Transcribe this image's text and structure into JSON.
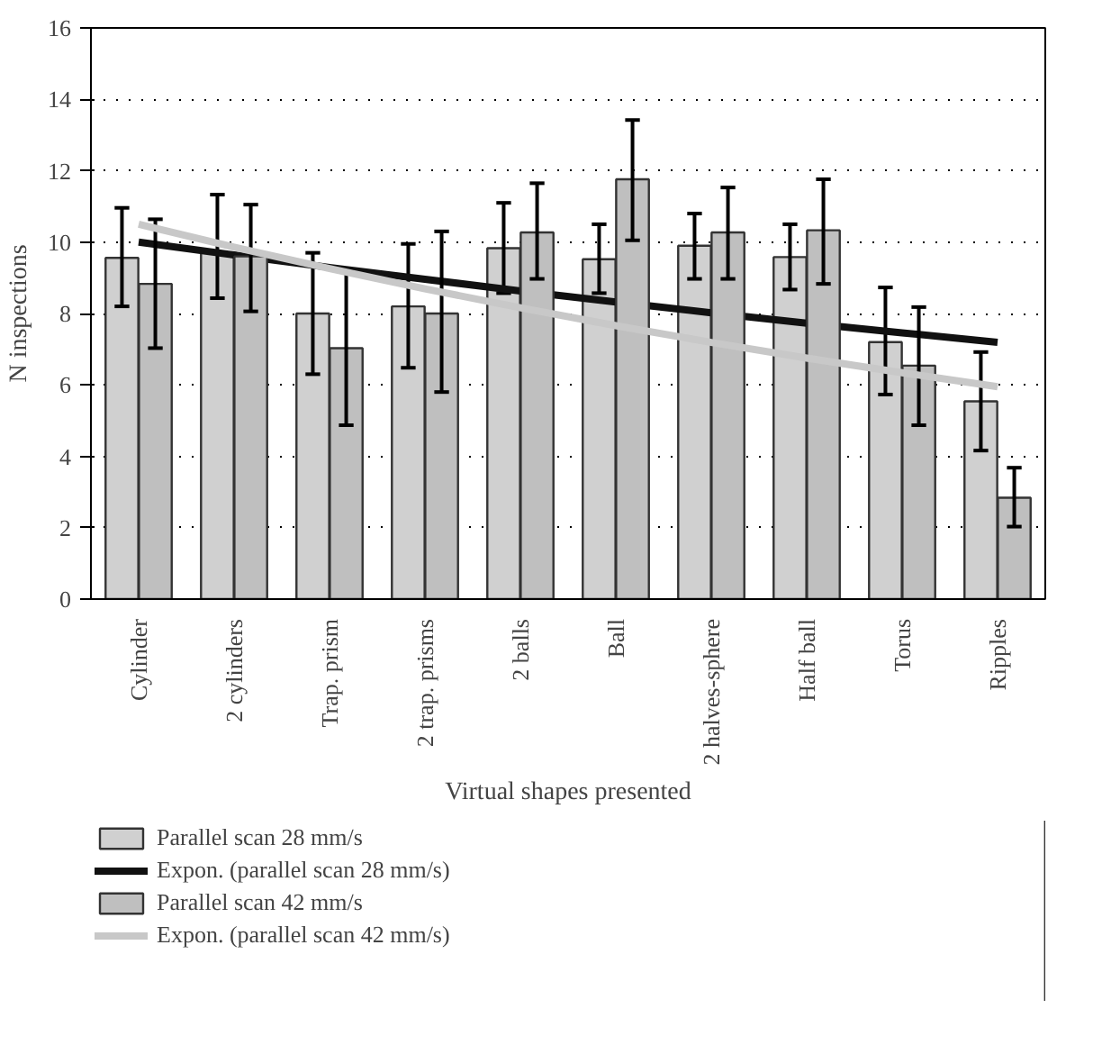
{
  "chart_data": {
    "type": "bar",
    "xlabel": "Virtual shapes presented",
    "ylabel": "N inspections",
    "categories": [
      "Cylinder",
      "2 cylinders",
      "Trap. prism",
      "2 trap. prisms",
      "2 balls",
      "Ball",
      "2 halves-sphere",
      "Half ball",
      "Torus",
      "Ripples"
    ],
    "series": [
      {
        "name": "Parallel scan 28 mm/s",
        "color": "#d0d0d0",
        "values": [
          9.56,
          9.7,
          8.0,
          8.2,
          9.83,
          9.52,
          9.9,
          9.58,
          7.2,
          5.54
        ],
        "errors": [
          [
            8.2,
            10.96
          ],
          [
            8.43,
            11.33
          ],
          [
            6.3,
            9.7
          ],
          [
            6.48,
            9.95
          ],
          [
            8.57,
            11.1
          ],
          [
            8.57,
            10.5
          ],
          [
            8.97,
            10.8
          ],
          [
            8.67,
            10.5
          ],
          [
            5.73,
            8.73
          ],
          [
            4.16,
            6.92
          ]
        ]
      },
      {
        "name": "Expon. (parallel scan 28 mm/s)",
        "type": "line",
        "color": "#111111",
        "values": [
          10.0,
          9.64,
          9.29,
          8.96,
          8.63,
          8.32,
          8.02,
          7.73,
          7.46,
          7.19
        ]
      },
      {
        "name": "Parallel scan 42 mm/s",
        "color": "#bfbfbf",
        "values": [
          8.83,
          9.6,
          7.03,
          8.0,
          10.27,
          11.76,
          10.27,
          10.33,
          6.54,
          2.84
        ],
        "errors": [
          [
            7.03,
            10.64
          ],
          [
            8.06,
            11.05
          ],
          [
            4.87,
            9.2
          ],
          [
            5.8,
            10.3
          ],
          [
            8.97,
            11.65
          ],
          [
            10.05,
            13.42
          ],
          [
            8.97,
            11.53
          ],
          [
            8.83,
            11.76
          ],
          [
            4.87,
            8.18
          ],
          [
            2.03,
            3.68
          ]
        ]
      },
      {
        "name": "Expon. (parallel scan 42 mm/s)",
        "type": "line",
        "color": "#c8c8c8",
        "values": [
          10.5,
          9.86,
          9.26,
          8.69,
          8.16,
          7.66,
          7.19,
          6.75,
          6.34,
          5.95
        ]
      }
    ],
    "ylim": [
      0,
      16
    ],
    "yticks": [
      0,
      2,
      4,
      6,
      8,
      10,
      12,
      14,
      16
    ],
    "grid": "y",
    "legend": "bottom"
  }
}
